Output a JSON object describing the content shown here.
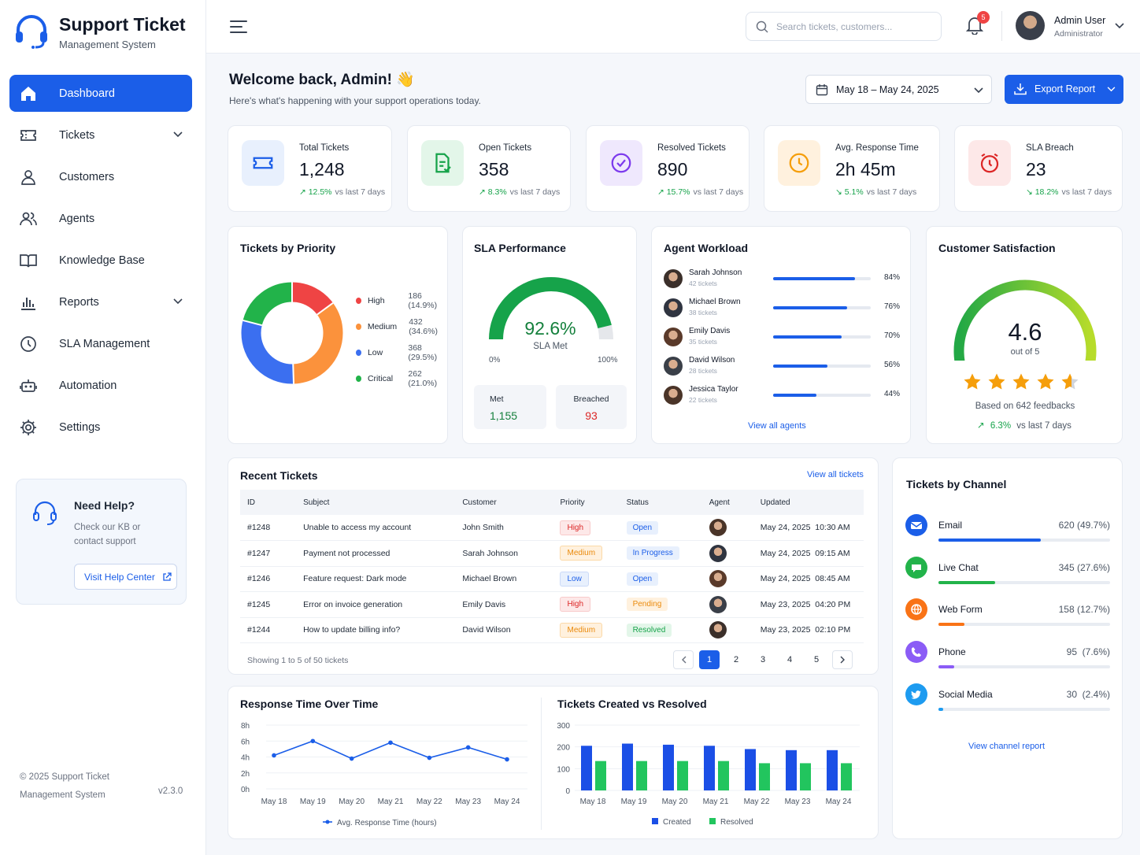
{
  "app": {
    "title": "Support Ticket",
    "subtitle": "Management System"
  },
  "nav": [
    {
      "label": "Dashboard",
      "icon": "home-icon",
      "active": true
    },
    {
      "label": "Tickets",
      "icon": "ticket-icon",
      "has_chevron": true
    },
    {
      "label": "Customers",
      "icon": "user-icon"
    },
    {
      "label": "Agents",
      "icon": "users-icon"
    },
    {
      "label": "Knowledge Base",
      "icon": "book-icon"
    },
    {
      "label": "Reports",
      "icon": "bar-chart-icon",
      "has_chevron": true
    },
    {
      "label": "SLA Management",
      "icon": "clock-icon"
    },
    {
      "label": "Automation",
      "icon": "robot-icon"
    },
    {
      "label": "Settings",
      "icon": "gear-icon"
    }
  ],
  "help": {
    "title": "Need Help?",
    "text": "Check our KB or contact support",
    "button": "Visit Help Center"
  },
  "footer": {
    "copyright": "© 2025 Support Ticket Management System",
    "version": "v2.3.0"
  },
  "topbar": {
    "search_placeholder": "Search tickets, customers...",
    "notifications": "5",
    "user_name": "Admin User",
    "user_role": "Administrator"
  },
  "header": {
    "welcome": "Welcome back, Admin!",
    "emoji": "👋",
    "subtitle": "Here's what's happening with your support operations today.",
    "date_range": "May 18 – May 24, 2025",
    "export": "Export Report"
  },
  "stats": [
    {
      "label": "Total Tickets",
      "value": "1,248",
      "trend": "12.5%",
      "dir": "up",
      "suffix": "vs last 7 days",
      "color": "#1b5ee8",
      "bg": "#e8f0fd"
    },
    {
      "label": "Open Tickets",
      "value": "358",
      "trend": "8.3%",
      "dir": "up",
      "suffix": "vs last 7 days",
      "color": "#16a34a",
      "bg": "#e3f6e9"
    },
    {
      "label": "Resolved Tickets",
      "value": "890",
      "trend": "15.7%",
      "dir": "up",
      "suffix": "vs last 7 days",
      "color": "#7c3aed",
      "bg": "#efe8fd"
    },
    {
      "label": "Avg. Response Time",
      "value": "2h 45m",
      "trend": "5.1%",
      "dir": "down",
      "suffix": "vs last 7 days",
      "color": "#f59e0b",
      "bg": "#fff1de"
    },
    {
      "label": "SLA Breach",
      "value": "23",
      "trend": "18.2%",
      "dir": "down",
      "suffix": "vs last 7 days",
      "color": "#dc2626",
      "bg": "#fde8e8"
    }
  ],
  "priority": {
    "title": "Tickets by Priority",
    "items": [
      {
        "name": "High",
        "value": "186 (14.9%)",
        "pct": 14.9,
        "color": "#ef4444"
      },
      {
        "name": "Medium",
        "value": "432 (34.6%)",
        "pct": 34.6,
        "color": "#fb923c"
      },
      {
        "name": "Low",
        "value": "368 (29.5%)",
        "pct": 29.5,
        "color": "#3b6ff0"
      },
      {
        "name": "Critical",
        "value": "262 (21.0%)",
        "pct": 21.0,
        "color": "#22b34a"
      }
    ]
  },
  "sla": {
    "title": "SLA Performance",
    "value": "92.6%",
    "pct": 92.6,
    "label": "SLA Met",
    "min": "0%",
    "max": "100%",
    "met_label": "Met",
    "met": "1,155",
    "breached_label": "Breached",
    "breached": "93"
  },
  "workload": {
    "title": "Agent Workload",
    "agents": [
      {
        "name": "Sarah Johnson",
        "tickets": "42 tickets",
        "pct": 84,
        "pct_label": "84%"
      },
      {
        "name": "Michael Brown",
        "tickets": "38 tickets",
        "pct": 76,
        "pct_label": "76%"
      },
      {
        "name": "Emily Davis",
        "tickets": "35 tickets",
        "pct": 70,
        "pct_label": "70%"
      },
      {
        "name": "David Wilson",
        "tickets": "28 tickets",
        "pct": 56,
        "pct_label": "56%"
      },
      {
        "name": "Jessica Taylor",
        "tickets": "22 tickets",
        "pct": 44,
        "pct_label": "44%"
      }
    ],
    "link": "View all agents"
  },
  "csat": {
    "title": "Customer Satisfaction",
    "value": "4.6",
    "score": 4.6,
    "max": 5,
    "out_of": "out of 5",
    "feedback": "Based on 642 feedbacks",
    "trend": "6.3%",
    "suffix": "vs last 7 days"
  },
  "recent": {
    "title": "Recent Tickets",
    "link": "View all tickets",
    "columns": [
      "ID",
      "Subject",
      "Customer",
      "Priority",
      "Status",
      "Agent",
      "Updated"
    ],
    "rows": [
      {
        "id": "#1248",
        "subject": "Unable to access my account",
        "customer": "John Smith",
        "priority": "High",
        "pclass": "b-high",
        "status": "Open",
        "sclass": "b-open",
        "updated": "May 24, 2025  10:30 AM"
      },
      {
        "id": "#1247",
        "subject": "Payment not processed",
        "customer": "Sarah Johnson",
        "priority": "Medium",
        "pclass": "b-med",
        "status": "In Progress",
        "sclass": "b-prog",
        "updated": "May 24, 2025  09:15 AM"
      },
      {
        "id": "#1246",
        "subject": "Feature request: Dark mode",
        "customer": "Michael Brown",
        "priority": "Low",
        "pclass": "b-low",
        "status": "Open",
        "sclass": "b-open",
        "updated": "May 24, 2025  08:45 AM"
      },
      {
        "id": "#1245",
        "subject": "Error on invoice generation",
        "customer": "Emily Davis",
        "priority": "High",
        "pclass": "b-high",
        "status": "Pending",
        "sclass": "b-pend",
        "updated": "May 23, 2025  04:20 PM"
      },
      {
        "id": "#1244",
        "subject": "How to update billing info?",
        "customer": "David Wilson",
        "priority": "Medium",
        "pclass": "b-med",
        "status": "Resolved",
        "sclass": "b-res",
        "updated": "May 23, 2025  02:10 PM"
      }
    ],
    "showing": "Showing 1 to 5 of 50 tickets",
    "pages": [
      "1",
      "2",
      "3",
      "4",
      "5"
    ]
  },
  "channels": {
    "title": "Tickets by Channel",
    "items": [
      {
        "name": "Email",
        "value": "620 (49.7%)",
        "pct": 49.7,
        "color": "#1b5ee8",
        "icon": "mail-icon"
      },
      {
        "name": "Live Chat",
        "value": "345 (27.6%)",
        "pct": 27.6,
        "color": "#22b34a",
        "icon": "chat-icon"
      },
      {
        "name": "Web Form",
        "value": "158 (12.7%)",
        "pct": 12.7,
        "color": "#f97316",
        "icon": "globe-icon"
      },
      {
        "name": "Phone",
        "value": "95  (7.6%)",
        "pct": 7.6,
        "color": "#8b5cf6",
        "icon": "phone-icon"
      },
      {
        "name": "Social Media",
        "value": "30  (2.4%)",
        "pct": 2.4,
        "color": "#1d9bf0",
        "icon": "twitter-icon"
      }
    ],
    "link": "View channel report"
  },
  "chart_data": [
    {
      "type": "line",
      "title": "Response Time Over Time",
      "categories": [
        "May 18",
        "May 19",
        "May 20",
        "May 21",
        "May 22",
        "May 23",
        "May 24"
      ],
      "y_ticks": [
        "8h",
        "6h",
        "4h",
        "2h",
        "0h"
      ],
      "ylim": [
        0,
        8
      ],
      "series": [
        {
          "name": "Avg. Response Time (hours)",
          "values": [
            4.2,
            6.0,
            3.8,
            5.8,
            3.9,
            5.2,
            3.7
          ],
          "color": "#1b5ee8"
        }
      ],
      "legend": "bottom"
    },
    {
      "type": "bar",
      "title": "Tickets Created vs Resolved",
      "categories": [
        "May 18",
        "May 19",
        "May 20",
        "May 21",
        "May 22",
        "May 23",
        "May 24"
      ],
      "y_ticks": [
        "300",
        "200",
        "100",
        "0"
      ],
      "ylim": [
        0,
        300
      ],
      "series": [
        {
          "name": "Created",
          "values": [
            205,
            215,
            210,
            205,
            190,
            185,
            185
          ],
          "color": "#1b4fe6"
        },
        {
          "name": "Resolved",
          "values": [
            135,
            135,
            135,
            135,
            125,
            125,
            125
          ],
          "color": "#22c55e"
        }
      ],
      "legend": "bottom"
    }
  ]
}
